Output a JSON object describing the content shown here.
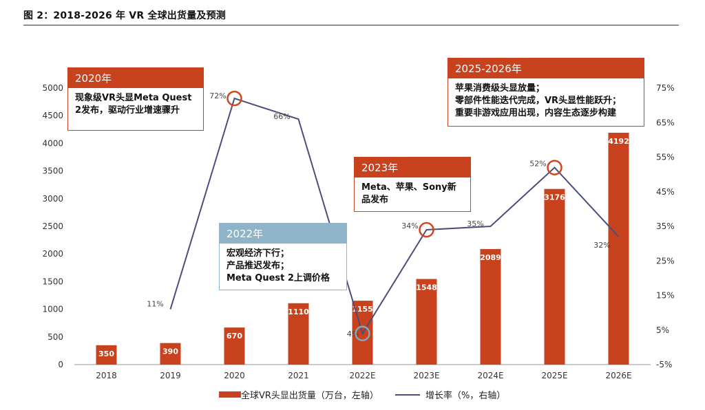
{
  "figure_title": "图 2：2018-2026 年 VR 全球出货量及预测",
  "chart_data": {
    "type": "bar",
    "categories": [
      "2018",
      "2019",
      "2020",
      "2021",
      "2022E",
      "2023E",
      "2024E",
      "2025E",
      "2026E"
    ],
    "series": [
      {
        "name": "全球VR头显出货量（万台，左轴）",
        "type": "bar",
        "axis": "left",
        "values": [
          350,
          390,
          670,
          1110,
          1155,
          1548,
          2089,
          3176,
          4192
        ],
        "labels": [
          "350",
          "390",
          "670",
          "1110",
          "1155",
          "1548",
          "2089",
          "3176",
          "4192"
        ]
      },
      {
        "name": "增长率（%，右轴）",
        "type": "line",
        "axis": "right",
        "values": [
          null,
          11,
          72,
          66,
          4,
          34,
          35,
          52,
          32
        ],
        "labels": [
          "",
          "11%",
          "72%",
          "66%",
          "4%",
          "34%",
          "35%",
          "52%",
          "32%"
        ]
      }
    ],
    "y_left": {
      "min": 0,
      "max": 5000,
      "ticks": [
        "0",
        "500",
        "1000",
        "1500",
        "2000",
        "2500",
        "3000",
        "3500",
        "4000",
        "4500",
        "5000"
      ]
    },
    "y_right": {
      "min": -5,
      "max": 75,
      "ticks": [
        "-5%",
        "5%",
        "15%",
        "25%",
        "35%",
        "45%",
        "55%",
        "65%",
        "75%"
      ]
    },
    "highlighted_points": [
      "2020",
      "2022E",
      "2023E",
      "2025E"
    ],
    "colors": {
      "bar": "#c8421e",
      "line": "#4a4e78",
      "circle_red": "#d2461f",
      "circle_blue": "#7fa8c4"
    }
  },
  "annotations": [
    {
      "head": "2020年",
      "lines": [
        "现象级VR头显Meta Quest",
        "2发布，驱动行业增速骤升"
      ]
    },
    {
      "head": "2022年",
      "lines": [
        "宏观经济下行；",
        "产品推迟发布；",
        "Meta Quest 2上调价格"
      ]
    },
    {
      "head": "2023年",
      "lines": [
        "Meta、苹果、Sony新",
        "品发布"
      ]
    },
    {
      "head": "2025-2026年",
      "lines": [
        "苹果消费级头显放量；",
        "零部件性能迭代完成，VR头显性能跃升；",
        "重要非游戏应用出现，内容生态逐步构建"
      ]
    }
  ],
  "legend": {
    "bar": "全球VR头显出货量（万台，左轴）",
    "line": "增长率（%，右轴）"
  }
}
